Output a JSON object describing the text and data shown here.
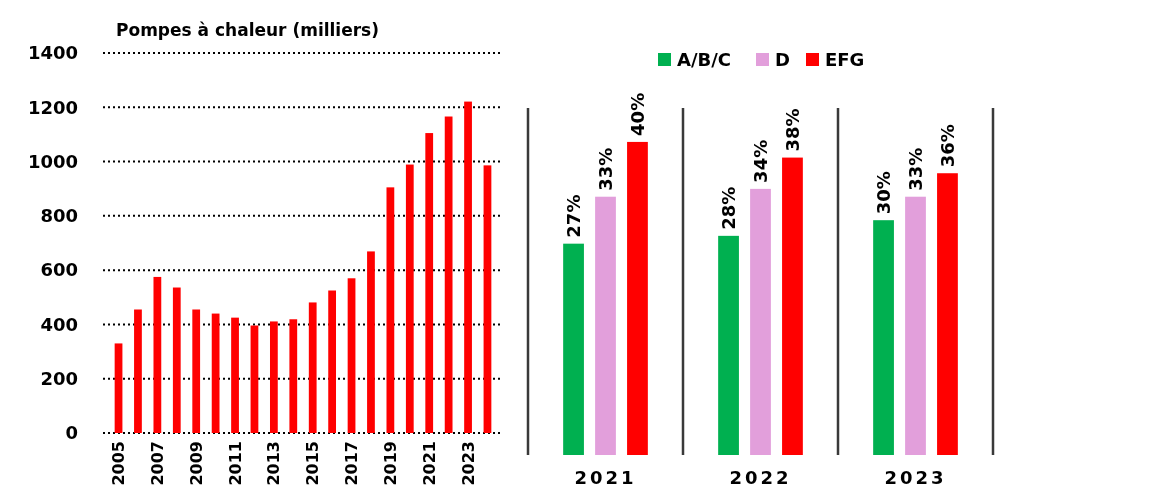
{
  "chart_data": [
    {
      "type": "bar",
      "title": "Pompes à chaleur (milliers)",
      "categories": [
        "2005",
        null,
        "2007",
        null,
        "2009",
        null,
        "2011",
        null,
        "2013",
        null,
        "2015",
        null,
        "2017",
        null,
        "2019",
        null,
        "2021",
        null,
        "2023",
        null
      ],
      "values": [
        330,
        455,
        575,
        536,
        455,
        440,
        425,
        396,
        411,
        419,
        481,
        525,
        570,
        669,
        905,
        989,
        1105,
        1166,
        1221,
        986
      ],
      "color": "#ff0000",
      "ylim": [
        0,
        1400
      ],
      "yticks": [
        0,
        200,
        400,
        600,
        800,
        1000,
        1200,
        1400
      ],
      "grid": "y"
    },
    {
      "type": "bar",
      "categories": [
        "2021",
        "2022",
        "2023"
      ],
      "legend": "top",
      "series": [
        {
          "name": "A/B/C",
          "color": "#00b050",
          "values": [
            27,
            28,
            30
          ],
          "value_labels": [
            "27%",
            "28%",
            "30%"
          ]
        },
        {
          "name": "D",
          "color": "#e29fdb",
          "values": [
            33,
            34,
            33
          ],
          "value_labels": [
            "33%",
            "34%",
            "33%"
          ]
        },
        {
          "name": "EFG",
          "color": "#ff0000",
          "values": [
            40,
            38,
            36
          ],
          "value_labels": [
            "40%",
            "38%",
            "36%"
          ]
        }
      ]
    }
  ]
}
